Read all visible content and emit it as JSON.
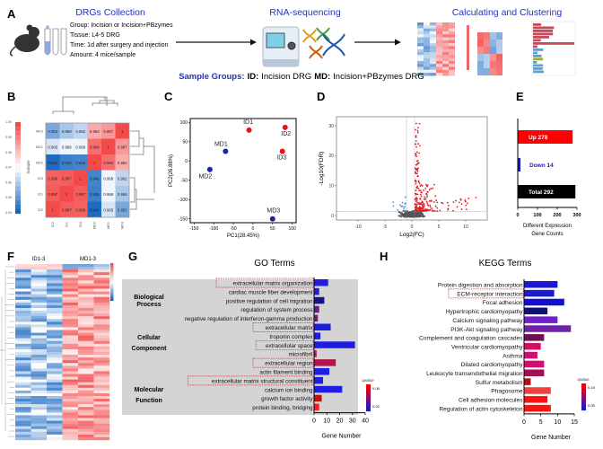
{
  "panel_labels": [
    "A",
    "B",
    "C",
    "D",
    "E",
    "F",
    "G",
    "H"
  ],
  "workflow": {
    "steps": [
      {
        "title": "DRGs Collection"
      },
      {
        "title": "RNA-sequencing"
      },
      {
        "title": "Calculating and Clustering"
      }
    ],
    "details": [
      "Group: Incision or Incision+PBzymes",
      "Tissue: L4-5 DRG",
      "Time: 1d after surgery and injection",
      "Amount: 4 mice/sample"
    ],
    "icons": [
      "mouse-icon",
      "test-tubes-icon",
      "sequencer-icon",
      "dna-icon",
      "arrow-right-icon"
    ],
    "sample_groups": {
      "prefix": "Sample Groups:",
      "id_label": "ID:",
      "id_text": "Incision DRG",
      "md_label": "MD:",
      "md_text": "Incision+PBzymes  DRG"
    },
    "title_color": "#2233bb"
  },
  "chart_data": [
    {
      "panel": "B",
      "type": "heatmap",
      "rows": [
        "MD3",
        "MD1",
        "MD2",
        "ID3",
        "ID1",
        "ID2"
      ],
      "columns": [
        "ID2",
        "ID1",
        "ID3",
        "MD2",
        "MD1",
        "MD3"
      ],
      "values": [
        [
          0.953,
          0.959,
          0.962,
          0.984,
          0.987,
          1
        ],
        [
          0.965,
          0.968,
          0.968,
          0.994,
          1,
          0.987
        ],
        [
          0.941,
          0.945,
          0.946,
          1,
          0.994,
          0.984
        ],
        [
          0.996,
          0.997,
          1,
          0.946,
          0.968,
          0.962
        ],
        [
          0.997,
          1,
          0.997,
          0.945,
          0.968,
          0.959
        ],
        [
          1,
          0.997,
          0.996,
          0.941,
          0.965,
          0.953
        ]
      ],
      "colorbar": {
        "label": "Sample",
        "range": [
          0.94,
          1.0
        ],
        "ticks": [
          "0.94",
          "0.95",
          "0.96",
          "0.97",
          "0.98",
          "0.99",
          "1.00"
        ],
        "colors": [
          "#1565c0",
          "#ffffff",
          "#f44a4a"
        ]
      }
    },
    {
      "panel": "C",
      "type": "scatter",
      "xlabel": "PC1(28.45%)",
      "ylabel": "PC2(26.88%)",
      "xlim": [
        -160,
        110
      ],
      "ylim": [
        -160,
        110
      ],
      "xticks": [
        "-150",
        "-100",
        "-50",
        "0",
        "50",
        "100"
      ],
      "yticks": [
        "100",
        "50",
        "0",
        "-50",
        "-100",
        "-150"
      ],
      "points": [
        {
          "label": "ID1",
          "x": -10,
          "y": 80,
          "group": "ID"
        },
        {
          "label": "ID2",
          "x": 82,
          "y": 87,
          "group": "ID"
        },
        {
          "label": "ID3",
          "x": 75,
          "y": 25,
          "group": "ID"
        },
        {
          "label": "MD1",
          "x": -70,
          "y": 25,
          "group": "MD"
        },
        {
          "label": "MD2",
          "x": -110,
          "y": -22,
          "group": "MD"
        },
        {
          "label": "MD3",
          "x": 50,
          "y": -150,
          "group": "MD"
        }
      ],
      "colors": {
        "ID": "#ee1111",
        "MD": "#1a22aa"
      }
    },
    {
      "panel": "D",
      "type": "scatter",
      "xlabel": "Log2(FC)",
      "ylabel": "-Log10(FDR)",
      "xlim": [
        -14,
        14
      ],
      "ylim": [
        -1.5,
        33
      ],
      "xticks": [
        "-10",
        "-5",
        "0",
        "5",
        "10"
      ],
      "yticks": [
        "0",
        "10",
        "20",
        "30"
      ],
      "fc_thresholds": [
        -1,
        0.5
      ],
      "fdr_threshold": 1.3,
      "colors": {
        "up": "#e01c24",
        "down": "#3a8fd8",
        "ns": "#555555"
      }
    },
    {
      "panel": "E",
      "type": "bar",
      "orientation": "horizontal",
      "categories": [
        "Up",
        "Down",
        "Total"
      ],
      "values": [
        278,
        14,
        292
      ],
      "bar_labels": [
        "Up 278",
        "Down 14",
        "Total 292"
      ],
      "colors": [
        "#ff0000",
        "#1a1acc",
        "#000000"
      ],
      "label_colors": [
        "#ffffff",
        "#1a1acc",
        "#ffffff"
      ],
      "xlim": [
        0,
        300
      ],
      "xticks": [
        "0",
        "100",
        "200",
        "300"
      ],
      "xlabel_lines": [
        "Different Expression",
        "Gene Counts"
      ]
    },
    {
      "panel": "F",
      "type": "heatmap",
      "column_groups": [
        "ID1-3",
        "MD1-3"
      ],
      "colors": [
        "#1565c0",
        "#ffffff",
        "#f44a4a"
      ]
    },
    {
      "panel": "G",
      "type": "bar",
      "orientation": "horizontal",
      "title": "GO Terms",
      "groups": [
        {
          "name_lines": [
            "Biological",
            "Process"
          ],
          "count": 5
        },
        {
          "name_lines": [
            "Cellular",
            "Component"
          ],
          "count": 5
        },
        {
          "name_lines": [
            "Molecular",
            "Function"
          ],
          "count": 5
        }
      ],
      "categories": [
        "extracellular matrix organization",
        "cardiac muscle fiber development",
        "positive regulation of cell migration",
        "regulation of system process",
        "negative regulation of interferon-gamma production",
        "extracellular matrix",
        "troponin complex",
        "extracellular space",
        "microfibril",
        "extracellular region",
        "actin filament binding",
        "extracellular matrix structural constituent",
        "calcium ion binding",
        "growth factor activity",
        "protein binding, bridging"
      ],
      "values": [
        11,
        4,
        8,
        4,
        3,
        13,
        5,
        32,
        2,
        17,
        12,
        7,
        22,
        6,
        4
      ],
      "colors": [
        "#1e1ee0",
        "#1e1ee0",
        "#14148a",
        "#6a1a80",
        "#7a1a6a",
        "#1e1ee0",
        "#1e1ee0",
        "#1e1ee0",
        "#a01a5a",
        "#b0154f",
        "#1e1ee0",
        "#1e1ee0",
        "#1e1ee0",
        "#c01010",
        "#ff1a1a"
      ],
      "highlighted": [
        0,
        5,
        7,
        9,
        11
      ],
      "xlim": [
        0,
        40
      ],
      "xticks": [
        "0",
        "10",
        "20",
        "30",
        "40"
      ],
      "xlabel": "Gene Number",
      "legend": {
        "title": "qvalue",
        "ticks": [
          "0.08",
          "0.02"
        ],
        "colors": [
          "#ff0000",
          "#1a1acc"
        ]
      }
    },
    {
      "panel": "H",
      "type": "bar",
      "orientation": "horizontal",
      "title": "KEGG Terms",
      "categories": [
        "Protein digestion and absorption",
        "ECM-receptor interaction",
        "Focal adhesion",
        "Hypertrophic cardiomyopathy",
        "Calcium signaling pathway",
        "PI3K-Akt signaling pathway",
        "Complement and coagulation cascades",
        "Ventricular cardiomyopathy",
        "Asthma",
        "Dilated cardiomyopathy",
        "Leukocyte transendothelial migration",
        "Sulfur metabolism",
        "Phagosome",
        "Cell adhesion molecules",
        "Regulation of actin cytoskeleton"
      ],
      "values": [
        10,
        9,
        12,
        7,
        10,
        14,
        6,
        5,
        4,
        6,
        6,
        2,
        8,
        7,
        8
      ],
      "colors": [
        "#1a1ad0",
        "#1a1ad0",
        "#1010d0",
        "#10107a",
        "#7020c8",
        "#7020a8",
        "#701050",
        "#d01060",
        "#d01070",
        "#d01070",
        "#a01050",
        "#b01010",
        "#f04040",
        "#ff1010",
        "#ff1010"
      ],
      "highlighted": [
        1
      ],
      "xlim": [
        0,
        15
      ],
      "xticks": [
        "0",
        "5",
        "10",
        "15"
      ],
      "xlabel": "Gene Number",
      "legend": {
        "title": "qvalue",
        "ticks": [
          "0.15",
          "0.05"
        ],
        "colors": [
          "#ff0000",
          "#1a1acc"
        ]
      }
    }
  ]
}
